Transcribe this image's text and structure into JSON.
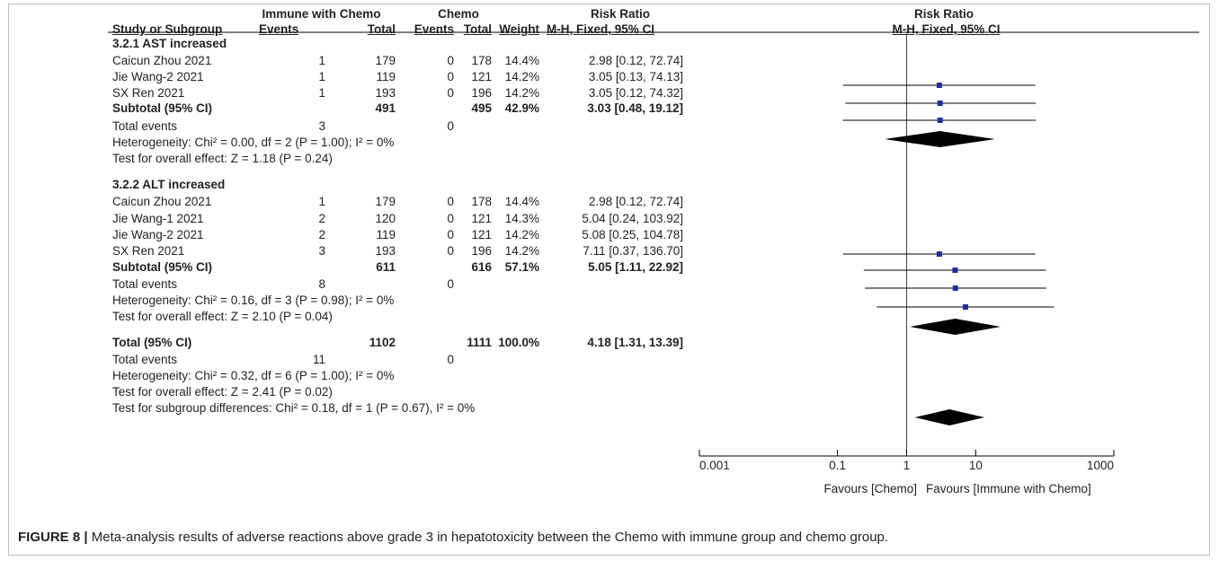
{
  "header": {
    "group_exp": "Immune with Chemo",
    "group_ctrl": "Chemo",
    "effect_title_table": "Risk Ratio",
    "effect_title_plot": "Risk Ratio",
    "col_study": "Study or Subgroup",
    "col_events_exp": "Events",
    "col_total_exp": "Total",
    "col_events_ctrl": "Events",
    "col_total_ctrl": "Total",
    "col_weight": "Weight",
    "col_method": "M-H, Fixed, 95% CI",
    "plot_method": "M-H, Fixed, 95% CI"
  },
  "rows": [
    {
      "type": "heading",
      "label": "3.2.1 AST increased"
    },
    {
      "type": "study",
      "label": "Caicun Zhou 2021",
      "ee": "1",
      "te": "179",
      "ec": "0",
      "tc": "178",
      "w": "14.4%",
      "ci": "2.98 [0.12, 72.74]"
    },
    {
      "type": "study",
      "label": "Jie Wang-2 2021",
      "ee": "1",
      "te": "119",
      "ec": "0",
      "tc": "121",
      "w": "14.2%",
      "ci": "3.05 [0.13, 74.13]"
    },
    {
      "type": "study",
      "label": "SX Ren 2021",
      "ee": "1",
      "te": "193",
      "ec": "0",
      "tc": "196",
      "w": "14.2%",
      "ci": "3.05 [0.12, 74.32]"
    },
    {
      "type": "subtotal",
      "label": "Subtotal (95% CI)",
      "te": "491",
      "tc": "495",
      "w": "42.9%",
      "ci": "3.03 [0.48, 19.12]"
    },
    {
      "type": "events",
      "label": "Total events",
      "ee": "3",
      "ec": "0"
    },
    {
      "type": "note",
      "label": "Heterogeneity: Chi² = 0.00, df = 2 (P = 1.00); I² = 0%"
    },
    {
      "type": "note",
      "label": "Test for overall effect: Z = 1.18 (P = 0.24)"
    },
    {
      "type": "heading",
      "label": "3.2.2 ALT increased"
    },
    {
      "type": "study",
      "label": "Caicun Zhou 2021",
      "ee": "1",
      "te": "179",
      "ec": "0",
      "tc": "178",
      "w": "14.4%",
      "ci": "2.98 [0.12, 72.74]"
    },
    {
      "type": "study",
      "label": "Jie Wang-1 2021",
      "ee": "2",
      "te": "120",
      "ec": "0",
      "tc": "121",
      "w": "14.3%",
      "ci": "5.04 [0.24, 103.92]"
    },
    {
      "type": "study",
      "label": "Jie Wang-2 2021",
      "ee": "2",
      "te": "119",
      "ec": "0",
      "tc": "121",
      "w": "14.2%",
      "ci": "5.08 [0.25, 104.78]"
    },
    {
      "type": "study",
      "label": "SX Ren 2021",
      "ee": "3",
      "te": "193",
      "ec": "0",
      "tc": "196",
      "w": "14.2%",
      "ci": "7.11 [0.37, 136.70]"
    },
    {
      "type": "subtotal",
      "label": "Subtotal (95% CI)",
      "te": "611",
      "tc": "616",
      "w": "57.1%",
      "ci": "5.05 [1.11, 22.92]"
    },
    {
      "type": "events",
      "label": "Total events",
      "ee": "8",
      "ec": "0"
    },
    {
      "type": "note",
      "label": "Heterogeneity: Chi² = 0.16, df = 3 (P = 0.98); I² = 0%"
    },
    {
      "type": "note",
      "label": "Test for overall effect: Z = 2.10 (P = 0.04)"
    },
    {
      "type": "total",
      "label": "Total (95% CI)",
      "te": "1102",
      "tc": "1111",
      "w": "100.0%",
      "ci": "4.18 [1.31, 13.39]"
    },
    {
      "type": "events",
      "label": "Total events",
      "ee": "11",
      "ec": "0"
    },
    {
      "type": "note",
      "label": "Heterogeneity: Chi² = 0.32, df = 6 (P = 1.00); I² = 0%"
    },
    {
      "type": "note",
      "label": "Test for overall effect: Z = 2.41 (P = 0.02)"
    },
    {
      "type": "note",
      "label": "Test for subgroup differences: Chi² = 0.18, df = 1 (P = 0.67), I² = 0%"
    }
  ],
  "chart_data": {
    "type": "forest",
    "scale": "log",
    "xlim": [
      0.001,
      1000
    ],
    "ticks": [
      0.001,
      0.1,
      1,
      10,
      1000
    ],
    "tick_labels": [
      "0.001",
      "0.1",
      "1",
      "10",
      "1000"
    ],
    "favours_left": "Favours [Chemo]",
    "favours_right": "Favours [Immune with Chemo]",
    "point_color": "#1f2fa0",
    "diamond_color": "#000000",
    "estimates": [
      {
        "label": "Caicun Zhou 2021",
        "group": "AST",
        "rr": 2.98,
        "lo": 0.12,
        "hi": 72.74,
        "kind": "study"
      },
      {
        "label": "Jie Wang-2 2021",
        "group": "AST",
        "rr": 3.05,
        "lo": 0.13,
        "hi": 74.13,
        "kind": "study"
      },
      {
        "label": "SX Ren 2021",
        "group": "AST",
        "rr": 3.05,
        "lo": 0.12,
        "hi": 74.32,
        "kind": "study"
      },
      {
        "label": "Subtotal (95% CI)",
        "group": "AST",
        "rr": 3.03,
        "lo": 0.48,
        "hi": 19.12,
        "kind": "diamond"
      },
      {
        "label": "Caicun Zhou 2021",
        "group": "ALT",
        "rr": 2.98,
        "lo": 0.12,
        "hi": 72.74,
        "kind": "study"
      },
      {
        "label": "Jie Wang-1 2021",
        "group": "ALT",
        "rr": 5.04,
        "lo": 0.24,
        "hi": 103.92,
        "kind": "study"
      },
      {
        "label": "Jie Wang-2 2021",
        "group": "ALT",
        "rr": 5.08,
        "lo": 0.25,
        "hi": 104.78,
        "kind": "study"
      },
      {
        "label": "SX Ren 2021",
        "group": "ALT",
        "rr": 7.11,
        "lo": 0.37,
        "hi": 136.7,
        "kind": "study"
      },
      {
        "label": "Subtotal (95% CI)",
        "group": "ALT",
        "rr": 5.05,
        "lo": 1.11,
        "hi": 22.92,
        "kind": "diamond"
      },
      {
        "label": "Total (95% CI)",
        "group": "Total",
        "rr": 4.18,
        "lo": 1.31,
        "hi": 13.39,
        "kind": "diamond"
      }
    ]
  },
  "caption": {
    "label": "FIGURE 8 |",
    "text": " Meta-analysis results of adverse reactions above grade 3 in hepatotoxicity between the Chemo with immune group and chemo group."
  }
}
